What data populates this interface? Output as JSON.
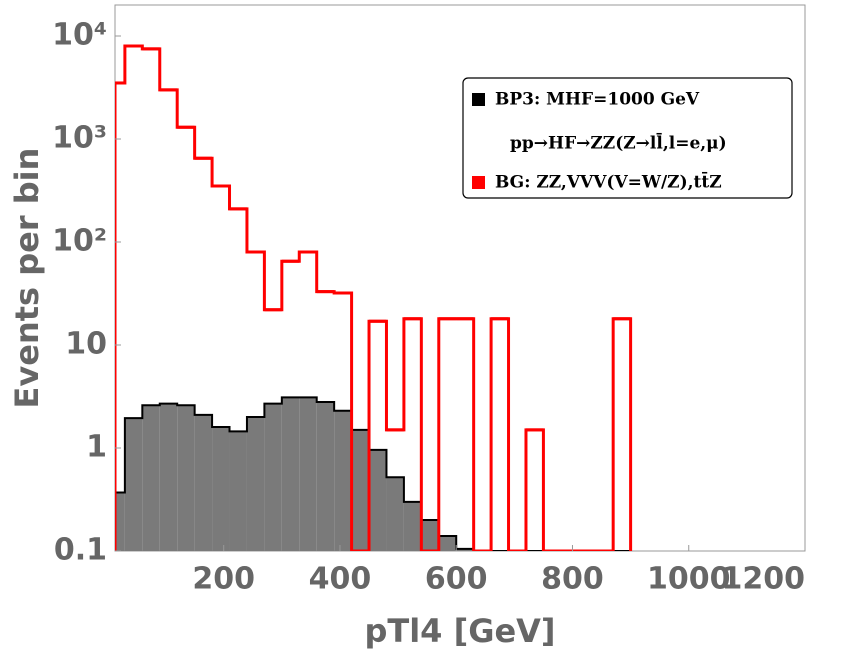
{
  "chart_data": {
    "type": "histogram",
    "xlabel": "pTl4 [GeV]",
    "ylabel": "Events per bin",
    "bins": [
      0,
      30,
      60,
      90,
      120,
      150,
      180,
      210,
      240,
      270,
      300,
      330,
      360,
      390,
      420,
      450,
      480,
      510,
      540,
      570,
      600,
      630,
      660,
      690,
      720,
      750,
      780,
      810,
      840,
      870,
      900
    ],
    "series": [
      {
        "name": "BP3: MHF=1000 GeV",
        "color": "#7a7a7a",
        "edge_color": "#000000",
        "filled": true,
        "values": [
          0.37,
          1.95,
          2.6,
          2.7,
          2.6,
          2.1,
          1.6,
          1.45,
          2.0,
          2.7,
          3.1,
          3.1,
          2.8,
          2.3,
          1.5,
          0.96,
          0.52,
          0.3,
          0.2,
          0.14,
          0.105,
          null,
          null,
          null,
          null,
          null,
          null,
          null,
          null,
          null
        ]
      },
      {
        "name": "BG: ZZ,VVV(V=W/Z),tt̄Z",
        "color": "#ff0000",
        "edge_color": "#ff0000",
        "filled": false,
        "values": [
          3500,
          8000,
          7500,
          3000,
          1300,
          650,
          350,
          210,
          80,
          22,
          65,
          80,
          33,
          32,
          null,
          17,
          1.5,
          18,
          null,
          18,
          18,
          null,
          18,
          null,
          1.5,
          null,
          null,
          null,
          null,
          18
        ]
      }
    ],
    "legend_note": "pp→HF→ZZ(Z→ll̄,l=e,μ)",
    "legend_position": "upper right",
    "xlim": [
      13,
      1200
    ],
    "xticks": [
      200,
      400,
      600,
      800,
      1000,
      1200
    ],
    "ylim": [
      0.1,
      20000
    ],
    "yscale": "log",
    "yticks": [
      0.1,
      1,
      10,
      {
        "value": 100,
        "label": "10²"
      },
      {
        "value": 1000,
        "label": "10³"
      },
      {
        "value": 10000,
        "label": "10⁴"
      }
    ]
  }
}
